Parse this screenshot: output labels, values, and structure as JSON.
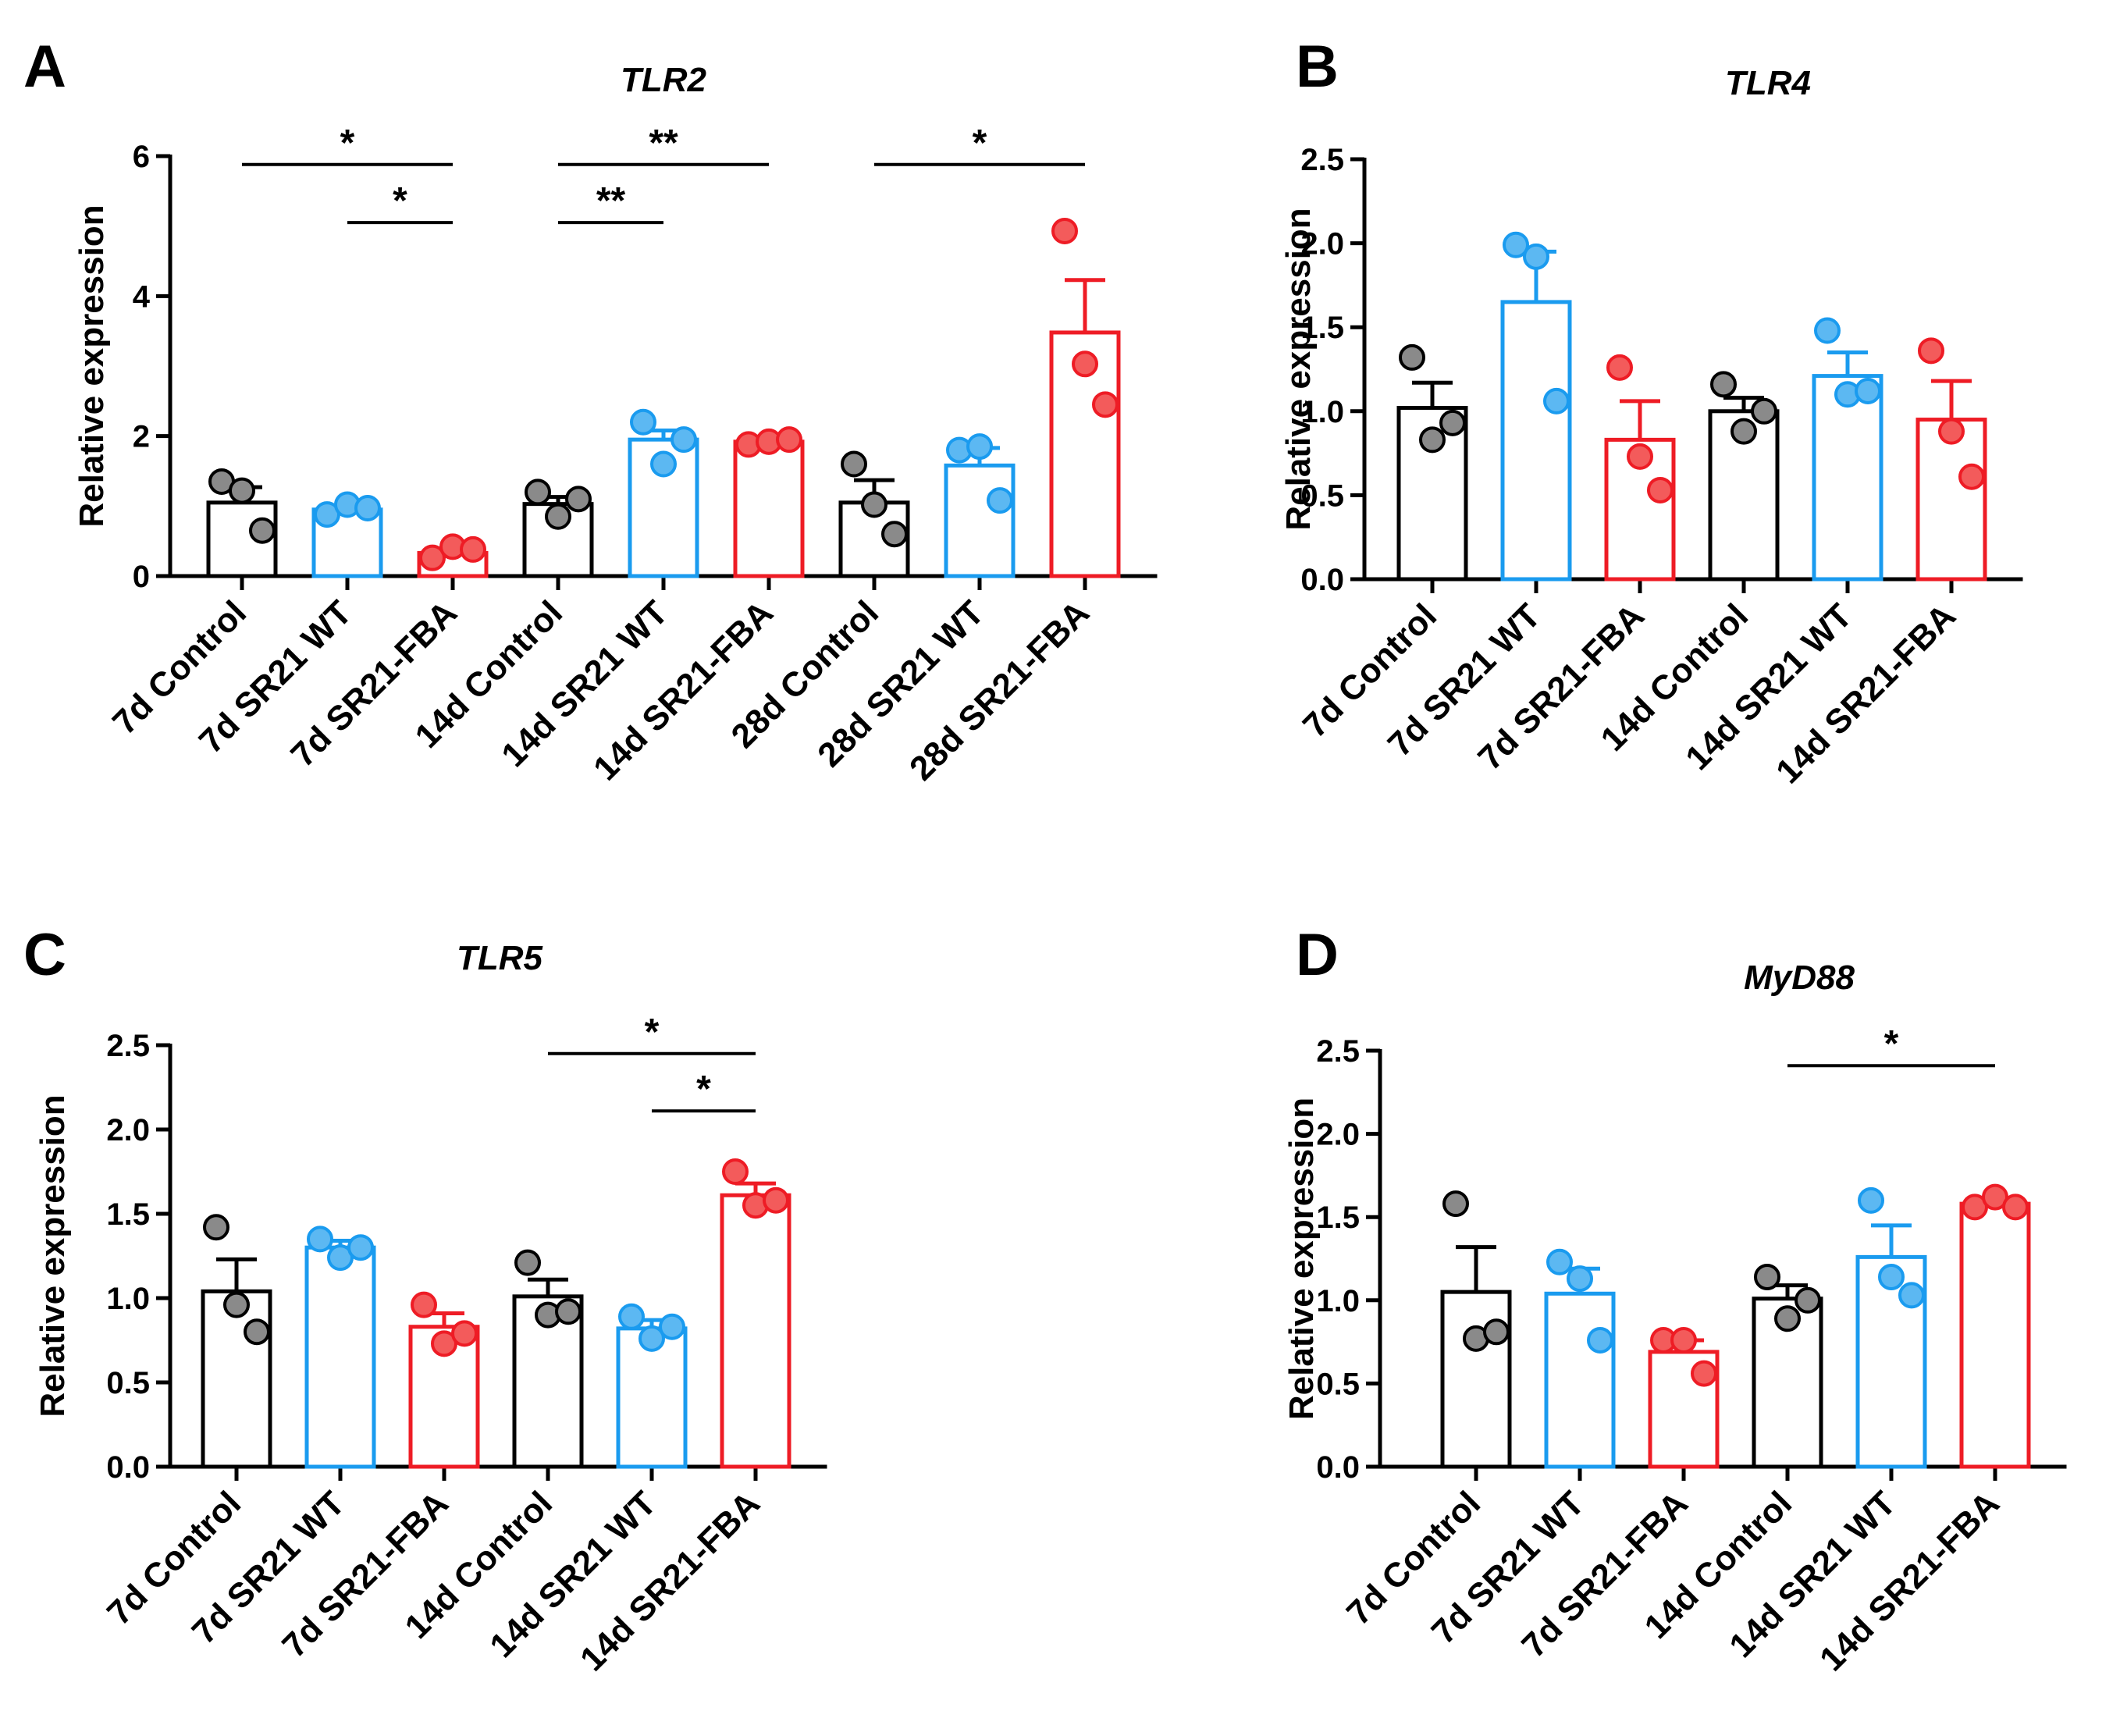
{
  "colors": {
    "control": "#000000",
    "wt": "#1a9bef",
    "fba": "#ee1c25",
    "dot_control": "#8a8a8a",
    "dot_wt": "#5cb8f2",
    "dot_fba": "#f35b5b"
  },
  "chart_data": [
    {
      "type": "bar",
      "panel": "A",
      "title": "TLR2",
      "ylabel": "Relative expression",
      "ylim": [
        0,
        6
      ],
      "yticks": [
        "0",
        "2",
        "4",
        "6"
      ],
      "categories": [
        "7d Control",
        "7d SR21 WT",
        "7d SR21-FBA",
        "14d Control",
        "14d SR21 WT",
        "14d SR21-FBA",
        "28d Control",
        "28d SR21 WT",
        "28d SR21-FBA"
      ],
      "groups": [
        "control",
        "wt",
        "fba",
        "control",
        "wt",
        "fba",
        "control",
        "wt",
        "fba"
      ],
      "values": [
        1.05,
        0.95,
        0.33,
        1.03,
        1.95,
        1.92,
        1.05,
        1.58,
        3.48
      ],
      "sem": [
        0.22,
        0.05,
        0.06,
        0.1,
        0.13,
        0.04,
        0.32,
        0.25,
        0.75
      ],
      "points": [
        [
          1.35,
          1.22,
          0.65
        ],
        [
          0.88,
          1.02,
          0.97
        ],
        [
          0.26,
          0.42,
          0.38
        ],
        [
          1.2,
          0.85,
          1.1
        ],
        [
          2.2,
          1.6,
          1.95
        ],
        [
          1.88,
          1.92,
          1.95
        ],
        [
          1.6,
          1.02,
          0.6
        ],
        [
          1.8,
          1.85,
          1.08
        ],
        [
          4.93,
          3.03,
          2.45
        ]
      ],
      "significance": [
        {
          "from": 0,
          "to": 2,
          "y": 5.88,
          "label": "*"
        },
        {
          "from": 1,
          "to": 2,
          "y": 5.05,
          "label": "*"
        },
        {
          "from": 3,
          "to": 5,
          "y": 5.88,
          "label": "**"
        },
        {
          "from": 3,
          "to": 4,
          "y": 5.05,
          "label": "**"
        },
        {
          "from": 6,
          "to": 8,
          "y": 5.88,
          "label": "*"
        }
      ]
    },
    {
      "type": "bar",
      "panel": "B",
      "title": "TLR4",
      "ylabel": "Relative expression",
      "ylim": [
        0,
        2.5
      ],
      "yticks": [
        "0.0",
        "0.5",
        "1.0",
        "1.5",
        "2.0",
        "2.5"
      ],
      "categories": [
        "7d Control",
        "7d SR21 WT",
        "7d SR21-FBA",
        "14d Control",
        "14d SR21 WT",
        "14d SR21-FBA"
      ],
      "groups": [
        "control",
        "wt",
        "fba",
        "control",
        "wt",
        "fba"
      ],
      "values": [
        1.02,
        1.65,
        0.83,
        1.0,
        1.21,
        0.95
      ],
      "sem": [
        0.15,
        0.3,
        0.23,
        0.08,
        0.14,
        0.23
      ],
      "points": [
        [
          1.32,
          0.83,
          0.93
        ],
        [
          1.99,
          1.92,
          1.06
        ],
        [
          1.26,
          0.73,
          0.53
        ],
        [
          1.16,
          0.88,
          1.0
        ],
        [
          1.48,
          1.1,
          1.12
        ],
        [
          1.36,
          0.88,
          0.61
        ]
      ],
      "significance": []
    },
    {
      "type": "bar",
      "panel": "C",
      "title": "TLR5",
      "ylabel": "Relative expression",
      "ylim": [
        0,
        2.5
      ],
      "yticks": [
        "0.0",
        "0.5",
        "1.0",
        "1.5",
        "2.0",
        "2.5"
      ],
      "categories": [
        "7d Control",
        "7d SR21 WT",
        "7d SR21-FBA",
        "14d Control",
        "14d SR21 WT",
        "14d SR21-FBA"
      ],
      "groups": [
        "control",
        "wt",
        "fba",
        "control",
        "wt",
        "fba"
      ],
      "values": [
        1.04,
        1.3,
        0.83,
        1.01,
        0.82,
        1.61
      ],
      "sem": [
        0.19,
        0.04,
        0.08,
        0.1,
        0.05,
        0.07
      ],
      "points": [
        [
          1.42,
          0.96,
          0.8
        ],
        [
          1.35,
          1.24,
          1.3
        ],
        [
          0.96,
          0.73,
          0.79
        ],
        [
          1.21,
          0.9,
          0.92
        ],
        [
          0.89,
          0.76,
          0.83
        ],
        [
          1.75,
          1.55,
          1.58
        ]
      ],
      "significance": [
        {
          "from": 3,
          "to": 5,
          "y": 2.45,
          "label": "*"
        },
        {
          "from": 4,
          "to": 5,
          "y": 2.11,
          "label": "*"
        }
      ]
    },
    {
      "type": "bar",
      "panel": "D",
      "title": "MyD88",
      "ylabel": "Relative expression",
      "ylim": [
        0,
        2.5
      ],
      "yticks": [
        "0.0",
        "0.5",
        "1.0",
        "1.5",
        "2.0",
        "2.5"
      ],
      "categories": [
        "7d Control",
        "7d SR21 WT",
        "7d SR21-FBA",
        "14d Control",
        "14d SR21 WT",
        "14d SR21-FBA"
      ],
      "groups": [
        "control",
        "wt",
        "fba",
        "control",
        "wt",
        "fba"
      ],
      "values": [
        1.05,
        1.04,
        0.69,
        1.01,
        1.26,
        1.58
      ],
      "sem": [
        0.27,
        0.15,
        0.07,
        0.08,
        0.19,
        0.03
      ],
      "points": [
        [
          1.58,
          0.77,
          0.81
        ],
        [
          1.23,
          1.13,
          0.76
        ],
        [
          0.76,
          0.76,
          0.56
        ],
        [
          1.14,
          0.89,
          1.0
        ],
        [
          1.6,
          1.14,
          1.03
        ],
        [
          1.56,
          1.62,
          1.56
        ]
      ],
      "significance": [
        {
          "from": 3,
          "to": 5,
          "y": 2.41,
          "label": "*"
        }
      ]
    }
  ]
}
